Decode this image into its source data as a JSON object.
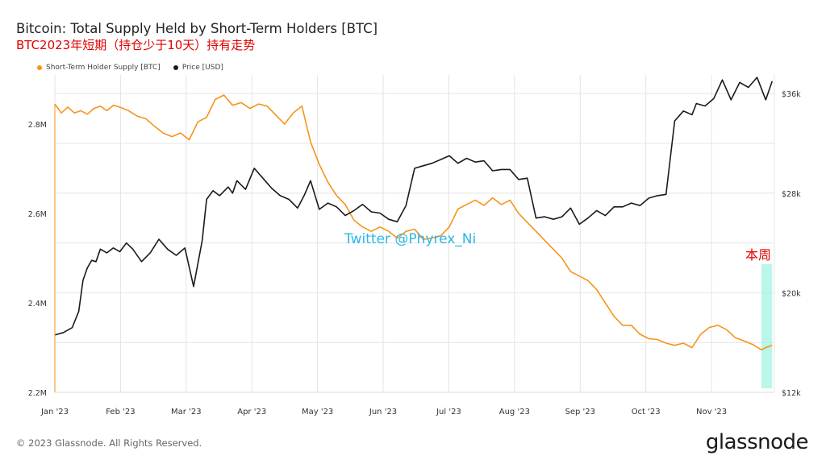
{
  "header": {
    "title": "Bitcoin: Total Supply Held by Short-Term Holders [BTC]",
    "subtitle": "BTC2023年短期（持仓少于10天）持有走势"
  },
  "footer": {
    "copyright": "© 2023 Glassnode. All Rights Reserved.",
    "brand": "glassnode"
  },
  "overlays": {
    "watermark": "Twitter @Phyrex_Ni",
    "annotation": "本周"
  },
  "colors": {
    "supply": "#f7931a",
    "price": "#1a1a1a",
    "grid": "#e4e4e4",
    "highlight": "#aef5e6"
  },
  "chart_data": {
    "type": "line",
    "title": "Bitcoin: Total Supply Held by Short-Term Holders [BTC]",
    "legend_position": "top-left",
    "x_ticks": [
      "Jan '23",
      "Feb '23",
      "Mar '23",
      "Apr '23",
      "May '23",
      "Jun '23",
      "Jul '23",
      "Aug '23",
      "Sep '23",
      "Oct '23",
      "Nov '23"
    ],
    "x_range": [
      0,
      332
    ],
    "y_left": {
      "label": "Short-Term Holder Supply [BTC]",
      "range": [
        2200000,
        2910000
      ],
      "ticks": [
        {
          "value": 2800000,
          "label": "2.8M"
        },
        {
          "value": 2600000,
          "label": "2.6M"
        },
        {
          "value": 2400000,
          "label": "2.4M"
        },
        {
          "value": 2200000,
          "label": "2.2M"
        }
      ]
    },
    "y_right": {
      "label": "Price [USD]",
      "range": [
        12000,
        37500
      ],
      "ticks": [
        {
          "value": 36000,
          "label": "$36k"
        },
        {
          "value": 28000,
          "label": "$28k"
        },
        {
          "value": 20000,
          "label": "$20k"
        },
        {
          "value": 12000,
          "label": "$12k"
        }
      ]
    },
    "highlight_range": [
      326,
      331
    ],
    "series": [
      {
        "name": "Short-Term Holder Supply [BTC]",
        "axis": "left",
        "color": "#f7931a",
        "x": [
          0,
          3,
          6,
          9,
          12,
          15,
          18,
          21,
          24,
          27,
          30,
          34,
          38,
          42,
          46,
          50,
          54,
          58,
          62,
          66,
          70,
          74,
          78,
          82,
          86,
          90,
          94,
          98,
          102,
          106,
          110,
          114,
          118,
          122,
          126,
          130,
          134,
          138,
          142,
          146,
          150,
          154,
          158,
          162,
          166,
          170,
          174,
          178,
          182,
          186,
          190,
          194,
          198,
          202,
          206,
          210,
          214,
          218,
          222,
          226,
          230,
          234,
          238,
          242,
          246,
          250,
          254,
          258,
          262,
          266,
          270,
          274,
          278,
          282,
          286,
          290,
          294,
          298,
          302,
          306,
          310,
          314,
          318,
          322,
          326,
          328,
          331
        ],
        "values": [
          2845000,
          2825000,
          2838000,
          2825000,
          2830000,
          2822000,
          2835000,
          2840000,
          2830000,
          2842000,
          2838000,
          2830000,
          2818000,
          2812000,
          2795000,
          2780000,
          2772000,
          2780000,
          2765000,
          2805000,
          2815000,
          2855000,
          2865000,
          2842000,
          2848000,
          2835000,
          2845000,
          2840000,
          2820000,
          2800000,
          2825000,
          2840000,
          2760000,
          2710000,
          2670000,
          2640000,
          2620000,
          2585000,
          2570000,
          2560000,
          2570000,
          2560000,
          2545000,
          2560000,
          2565000,
          2542000,
          2545000,
          2550000,
          2570000,
          2610000,
          2620000,
          2630000,
          2618000,
          2635000,
          2620000,
          2630000,
          2600000,
          2580000,
          2560000,
          2540000,
          2520000,
          2500000,
          2470000,
          2460000,
          2450000,
          2430000,
          2400000,
          2370000,
          2350000,
          2350000,
          2330000,
          2320000,
          2318000,
          2310000,
          2305000,
          2310000,
          2300000,
          2330000,
          2345000,
          2350000,
          2340000,
          2322000,
          2315000,
          2307000,
          2295000,
          2300000,
          2305000
        ]
      },
      {
        "name": "Price [USD]",
        "axis": "right",
        "color": "#1a1a1a",
        "x": [
          0,
          4,
          8,
          11,
          13,
          15,
          17,
          19,
          21,
          24,
          27,
          30,
          33,
          36,
          40,
          44,
          48,
          52,
          56,
          60,
          64,
          68,
          70,
          73,
          76,
          80,
          82,
          84,
          88,
          92,
          96,
          100,
          104,
          108,
          112,
          115,
          118,
          122,
          126,
          130,
          134,
          138,
          142,
          146,
          150,
          154,
          158,
          162,
          166,
          170,
          174,
          178,
          182,
          186,
          190,
          194,
          198,
          202,
          206,
          210,
          214,
          218,
          222,
          226,
          230,
          234,
          238,
          242,
          246,
          250,
          254,
          258,
          262,
          266,
          270,
          274,
          278,
          282,
          286,
          290,
          294,
          296,
          300,
          304,
          308,
          312,
          316,
          320,
          324,
          328,
          331
        ],
        "values": [
          16600,
          16800,
          17200,
          18500,
          21000,
          22000,
          22600,
          22500,
          23500,
          23200,
          23600,
          23300,
          24000,
          23500,
          22500,
          23200,
          24300,
          23500,
          23000,
          23600,
          20500,
          24200,
          27500,
          28200,
          27800,
          28500,
          28000,
          29000,
          28300,
          30000,
          29200,
          28400,
          27800,
          27500,
          26800,
          27800,
          29000,
          26700,
          27200,
          26900,
          26200,
          26600,
          27100,
          26500,
          26400,
          25900,
          25700,
          27000,
          30000,
          30200,
          30400,
          30700,
          31000,
          30400,
          30800,
          30500,
          30600,
          29800,
          29900,
          29900,
          29100,
          29200,
          26000,
          26100,
          25900,
          26100,
          26800,
          25500,
          26000,
          26600,
          26200,
          26900,
          26900,
          27200,
          27000,
          27600,
          27800,
          27900,
          33800,
          34600,
          34300,
          35200,
          35000,
          35600,
          37100,
          35500,
          36900,
          36500,
          37300,
          35500,
          37000
        ]
      }
    ]
  }
}
